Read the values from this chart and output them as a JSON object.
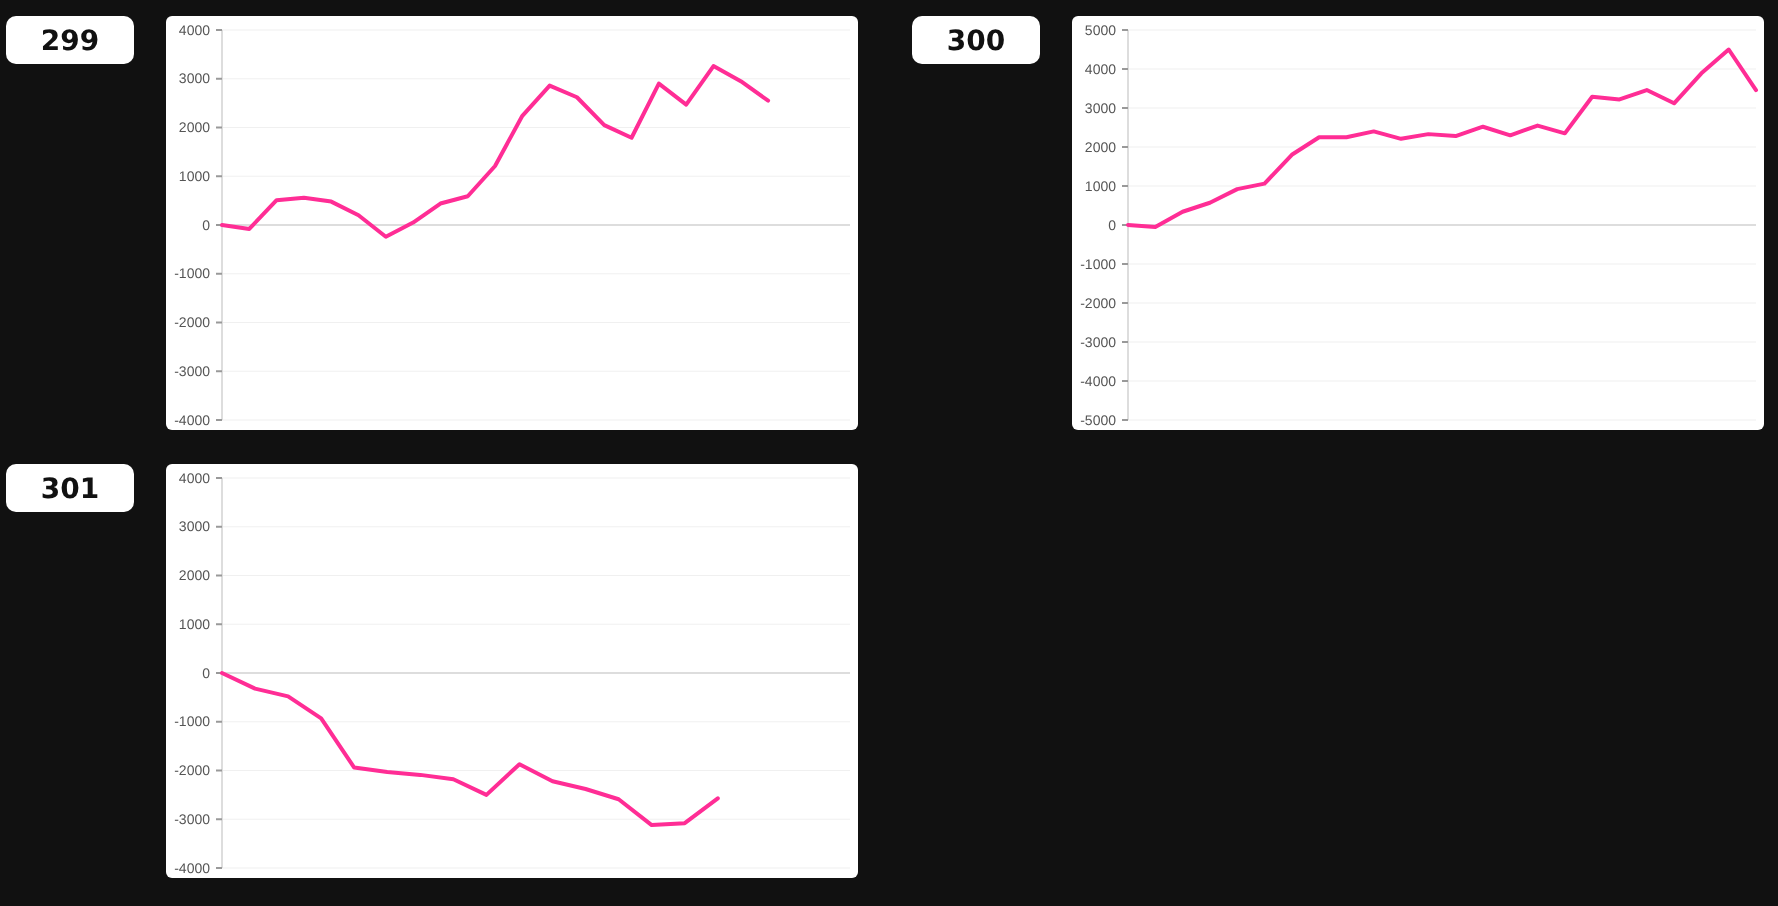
{
  "chart_data": [
    {
      "type": "line",
      "title": "299",
      "categories": [
        null,
        null,
        null,
        null,
        null,
        null,
        null,
        null,
        null,
        null,
        null,
        null,
        null,
        null,
        null,
        null,
        null,
        null,
        null,
        null,
        null,
        null,
        null,
        null
      ],
      "series": [
        {
          "color": "#ff2d95",
          "values": [
            0,
            -80,
            510,
            560,
            480,
            200,
            -240,
            50,
            440,
            590,
            1210,
            2240,
            2860,
            2620,
            2050,
            1790,
            2900,
            2470,
            3260,
            2950,
            2550,
            null,
            null,
            null
          ]
        }
      ],
      "ylim": [
        -4000,
        4000
      ],
      "yticks": [
        -4000,
        -3000,
        -2000,
        -1000,
        0,
        1000,
        2000,
        3000,
        4000
      ],
      "grid": "y"
    },
    {
      "type": "line",
      "title": "300",
      "categories": [
        null,
        null,
        null,
        null,
        null,
        null,
        null,
        null,
        null,
        null,
        null,
        null,
        null,
        null,
        null,
        null,
        null,
        null,
        null,
        null,
        null,
        null,
        null,
        null
      ],
      "series": [
        {
          "color": "#ff2d95",
          "values": [
            0,
            -50,
            340,
            570,
            920,
            1060,
            1800,
            2250,
            2250,
            2400,
            2210,
            2330,
            2280,
            2520,
            2300,
            2550,
            2350,
            3290,
            3220,
            3460,
            3120,
            3890,
            4500,
            3460
          ]
        }
      ],
      "ylim": [
        -5000,
        5000
      ],
      "yticks": [
        -5000,
        -4000,
        -3000,
        -2000,
        -1000,
        0,
        1000,
        2000,
        3000,
        4000,
        5000
      ],
      "grid": "y"
    },
    {
      "type": "line",
      "title": "301",
      "categories": [
        null,
        null,
        null,
        null,
        null,
        null,
        null,
        null,
        null,
        null,
        null,
        null,
        null,
        null,
        null,
        null,
        null,
        null,
        null,
        null
      ],
      "series": [
        {
          "color": "#ff2d95",
          "values": [
            0,
            -320,
            -480,
            -930,
            -1940,
            -2030,
            -2090,
            -2180,
            -2500,
            -1870,
            -2220,
            -2380,
            -2590,
            -3120,
            -3080,
            -2570,
            null,
            null,
            null,
            null
          ]
        }
      ],
      "ylim": [
        -4000,
        4000
      ],
      "yticks": [
        -4000,
        -3000,
        -2000,
        -1000,
        0,
        1000,
        2000,
        3000,
        4000
      ],
      "grid": "y"
    }
  ]
}
